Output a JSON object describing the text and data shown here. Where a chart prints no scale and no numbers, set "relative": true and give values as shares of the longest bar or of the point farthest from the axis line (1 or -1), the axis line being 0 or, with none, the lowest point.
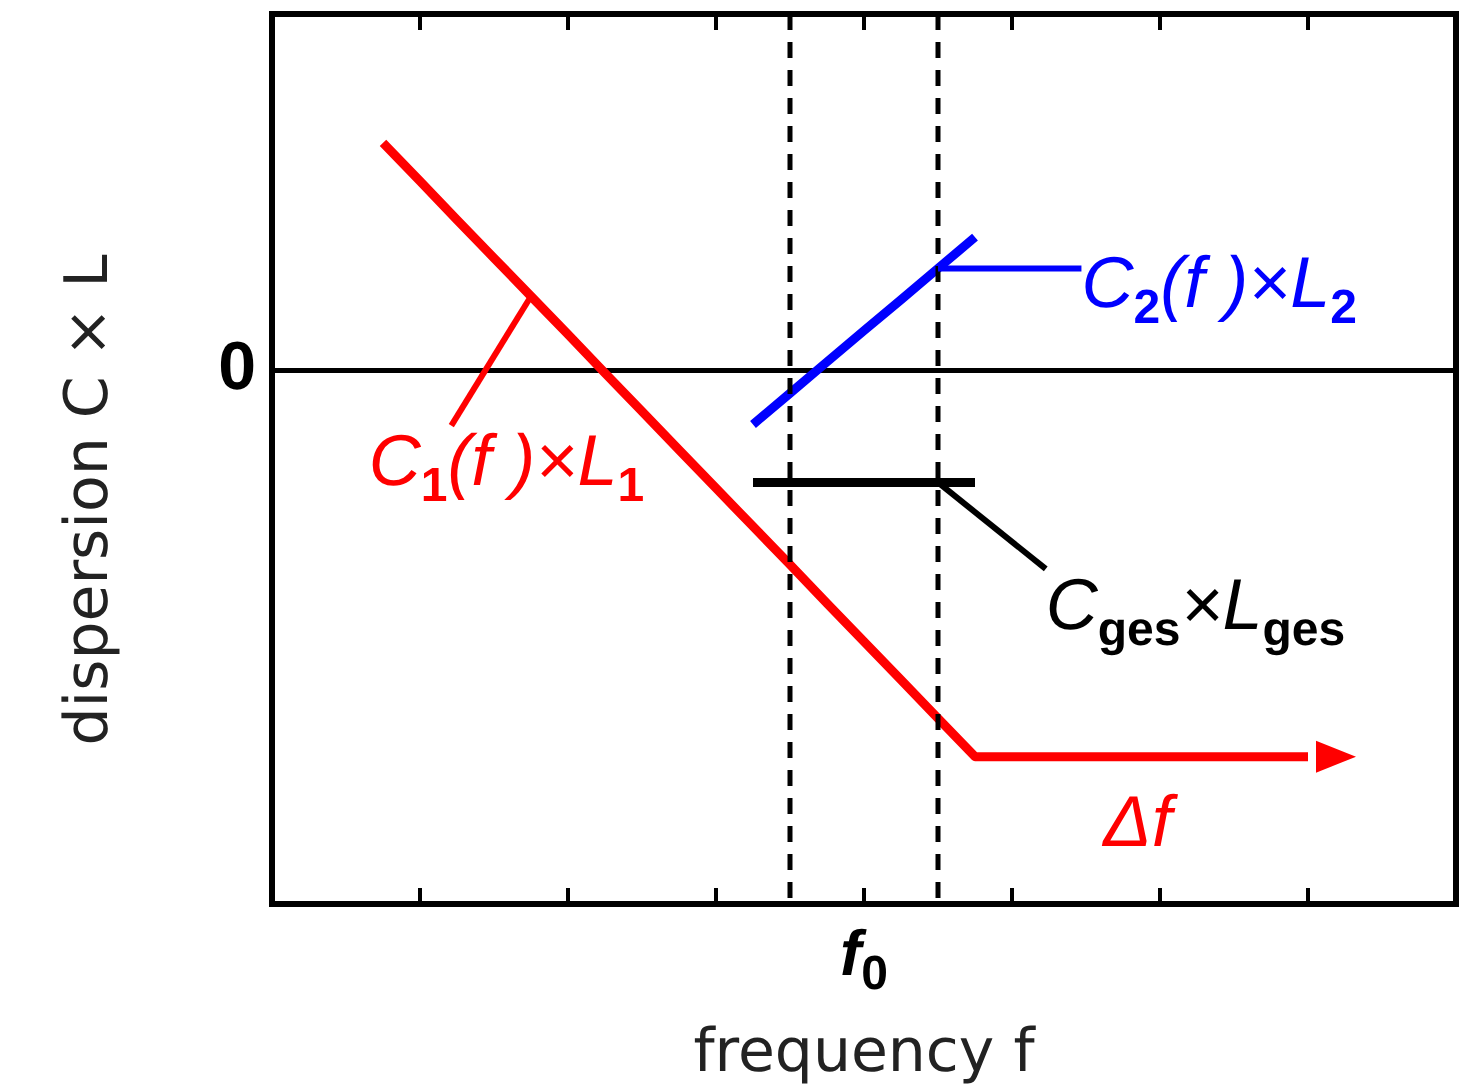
{
  "chart_data": {
    "type": "line",
    "relative": true,
    "xlabel": "frequency f",
    "ylabel": "dispersion C × L",
    "categories": [
      null,
      null,
      null,
      null,
      null,
      null,
      null,
      null,
      null,
      null,
      null,
      null,
      null,
      null,
      null,
      null,
      null,
      null,
      null,
      null,
      null,
      null,
      null,
      null,
      null,
      null,
      null,
      null,
      null,
      null,
      null,
      null,
      null
    ],
    "series": [
      {
        "color": "#ff0000",
        "values": [
          null,
          null,
          null,
          0.589,
          0.49,
          0.39,
          0.291,
          0.192,
          0.093,
          -0.007,
          -0.106,
          -0.206,
          -0.305,
          -0.404,
          -0.503,
          -0.603,
          -0.702,
          -0.801,
          -0.901,
          -1,
          -1,
          -1,
          -1,
          -1,
          -1,
          -1,
          -1,
          -1,
          -1,
          null,
          null,
          null,
          null
        ]
      },
      {
        "color": "#0000ff",
        "values": [
          null,
          null,
          null,
          null,
          null,
          null,
          null,
          null,
          null,
          null,
          null,
          null,
          null,
          -0.14,
          -0.059,
          0.022,
          0.103,
          0.183,
          0.264,
          0.345,
          null,
          null,
          null,
          null,
          null,
          null,
          null,
          null,
          null,
          null,
          null,
          null,
          null
        ]
      },
      {
        "color": "#000000",
        "values": [
          null,
          null,
          null,
          null,
          null,
          null,
          null,
          null,
          null,
          null,
          null,
          null,
          null,
          -0.29,
          -0.29,
          -0.29,
          -0.29,
          -0.29,
          -0.29,
          -0.29,
          null,
          null,
          null,
          null,
          null,
          null,
          null,
          null,
          null,
          null,
          null,
          null,
          null
        ]
      }
    ],
    "ref_lines": [
      {
        "axis": "y",
        "value": 0,
        "label": "0",
        "color": "#000000"
      }
    ],
    "annotations": [
      "C$_{1}$(f )×L$_{1}$",
      "C$_{2}$(f )×L$_{2}$",
      "C$_{ges}$×L$_{ges}$",
      "Δf",
      "f$_{0}$"
    ],
    "grid": false,
    "legend": false,
    "marker": "none",
    "line_style": "solid"
  }
}
